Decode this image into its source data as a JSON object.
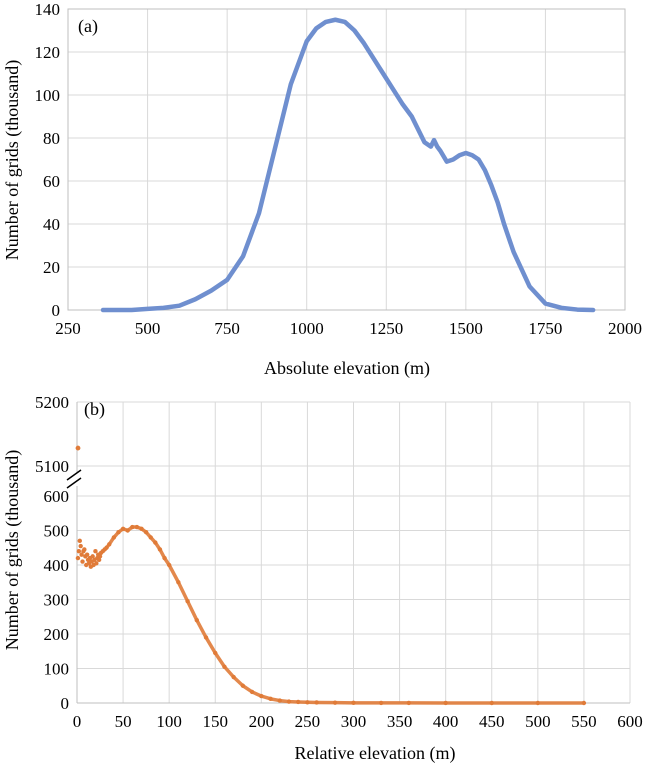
{
  "chart_data": [
    {
      "type": "line",
      "panel_label": "(a)",
      "xlabel": "Absolute elevation (m)",
      "ylabel": "Number of grids (thousand)",
      "xlim": [
        250,
        2000
      ],
      "ylim": [
        0,
        140
      ],
      "x_ticks": [
        "250",
        "500",
        "750",
        "1000",
        "1250",
        "1500",
        "1750",
        "2000"
      ],
      "y_ticks": [
        "0",
        "20",
        "40",
        "60",
        "80",
        "100",
        "120",
        "140"
      ],
      "grid": true,
      "color": "#6f8fcf",
      "series": [
        {
          "x": [
            360,
            450,
            500,
            550,
            600,
            650,
            700,
            750,
            800,
            850,
            900,
            950,
            1000,
            1030,
            1060,
            1090,
            1120,
            1150,
            1180,
            1210,
            1240,
            1270,
            1300,
            1330,
            1350,
            1370,
            1390,
            1400,
            1410,
            1420,
            1440,
            1460,
            1480,
            1500,
            1520,
            1540,
            1560,
            1580,
            1600,
            1620,
            1650,
            1700,
            1750,
            1800,
            1850,
            1900
          ],
          "y": [
            0,
            0,
            0.5,
            1,
            2,
            5,
            9,
            14,
            25,
            45,
            75,
            105,
            125,
            131,
            134,
            135,
            134,
            130,
            124,
            117,
            110,
            103,
            96,
            90,
            84,
            78,
            76,
            79,
            76,
            74,
            69,
            70,
            72,
            73,
            72,
            70,
            65,
            58,
            50,
            40,
            27,
            11,
            3,
            1,
            0.2,
            0
          ]
        }
      ]
    },
    {
      "type": "scatter",
      "panel_label": "(b)",
      "xlabel": "Relative elevation (m)",
      "ylabel": "Number of grids (thousand)",
      "xlim": [
        0,
        600
      ],
      "ylim_lower": [
        0,
        600
      ],
      "ylim_upper": [
        5100,
        5200
      ],
      "axis_break": true,
      "x_ticks": [
        "0",
        "50",
        "100",
        "150",
        "200",
        "250",
        "300",
        "350",
        "400",
        "450",
        "500",
        "550",
        "600"
      ],
      "y_ticks_lower": [
        "0",
        "100",
        "200",
        "300",
        "400",
        "500",
        "600"
      ],
      "y_ticks_upper": [
        "5100",
        "5200"
      ],
      "grid": true,
      "color": "#e07b39",
      "outlier": {
        "x": 0,
        "y": 5128
      },
      "series": [
        {
          "x": [
            1,
            2,
            3,
            4,
            5,
            6,
            7,
            8,
            9,
            10,
            11,
            12,
            13,
            14,
            15,
            16,
            17,
            18,
            19,
            20,
            21,
            22,
            23,
            24,
            25,
            26,
            28,
            30,
            32,
            35,
            40,
            45,
            50,
            55,
            60,
            65,
            70,
            75,
            80,
            85,
            90,
            95,
            100,
            110,
            120,
            130,
            140,
            150,
            160,
            170,
            180,
            190,
            200,
            210,
            220,
            230,
            240,
            250,
            260,
            280,
            300,
            330,
            360,
            400,
            450,
            500,
            550
          ],
          "y": [
            420,
            440,
            470,
            455,
            430,
            410,
            440,
            445,
            425,
            400,
            430,
            415,
            405,
            420,
            395,
            410,
            425,
            400,
            415,
            440,
            405,
            420,
            430,
            415,
            425,
            435,
            440,
            445,
            450,
            460,
            480,
            495,
            505,
            500,
            510,
            510,
            505,
            495,
            480,
            465,
            445,
            420,
            400,
            350,
            295,
            240,
            190,
            145,
            105,
            75,
            50,
            32,
            20,
            12,
            7,
            4,
            3,
            2,
            1.5,
            1,
            0.5,
            0.3,
            0.2,
            0.1,
            0,
            0,
            0
          ]
        }
      ]
    }
  ]
}
